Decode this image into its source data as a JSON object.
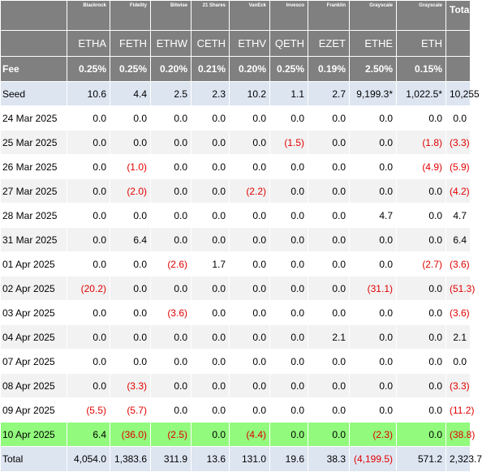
{
  "colors": {
    "header_bg": "#808080",
    "seed_bg": "#dde5f1",
    "alt_bg": "#f2f2f2",
    "highlight_bg": "#92fa7d",
    "negative": "#e00000"
  },
  "header": {
    "issuers": [
      "Blackrock",
      "Fidelity",
      "Bitwise",
      "21 Shares",
      "VanEck",
      "Invesco",
      "Franklin",
      "Grayscale",
      "Grayscale"
    ],
    "total_label": "Total",
    "tickers": [
      "ETHA",
      "FETH",
      "ETHW",
      "CETH",
      "ETHV",
      "QETH",
      "EZET",
      "ETHE",
      "ETH"
    ],
    "fee_label": "Fee",
    "fees": [
      "0.25%",
      "0.25%",
      "0.20%",
      "0.21%",
      "0.20%",
      "0.25%",
      "0.19%",
      "2.50%",
      "0.15%"
    ]
  },
  "rows": [
    {
      "label": "Seed",
      "values": [
        "10.6",
        "4.4",
        "2.5",
        "2.3",
        "10.2",
        "1.1",
        "2.7",
        "9,199.3*",
        "1,022.5*"
      ],
      "total": "10,255"
    },
    {
      "label": "24 Mar 2025",
      "values": [
        "0.0",
        "0.0",
        "0.0",
        "0.0",
        "0.0",
        "0.0",
        "0.0",
        "0.0",
        "0.0"
      ],
      "total": "0.0"
    },
    {
      "label": "25 Mar 2025",
      "values": [
        "0.0",
        "0.0",
        "0.0",
        "0.0",
        "0.0",
        "(1.5)",
        "0.0",
        "0.0",
        "(1.8)"
      ],
      "total": "(3.3)"
    },
    {
      "label": "26 Mar 2025",
      "values": [
        "0.0",
        "(1.0)",
        "0.0",
        "0.0",
        "0.0",
        "0.0",
        "0.0",
        "0.0",
        "(4.9)"
      ],
      "total": "(5.9)"
    },
    {
      "label": "27 Mar 2025",
      "values": [
        "0.0",
        "(2.0)",
        "0.0",
        "0.0",
        "(2.2)",
        "0.0",
        "0.0",
        "0.0",
        "0.0"
      ],
      "total": "(4.2)"
    },
    {
      "label": "28 Mar 2025",
      "values": [
        "0.0",
        "0.0",
        "0.0",
        "0.0",
        "0.0",
        "0.0",
        "0.0",
        "4.7",
        "0.0"
      ],
      "total": "4.7"
    },
    {
      "label": "31 Mar 2025",
      "values": [
        "0.0",
        "6.4",
        "0.0",
        "0.0",
        "0.0",
        "0.0",
        "0.0",
        "0.0",
        "0.0"
      ],
      "total": "6.4"
    },
    {
      "label": "01 Apr 2025",
      "values": [
        "0.0",
        "0.0",
        "(2.6)",
        "1.7",
        "0.0",
        "0.0",
        "0.0",
        "0.0",
        "(2.7)"
      ],
      "total": "(3.6)"
    },
    {
      "label": "02 Apr 2025",
      "values": [
        "(20.2)",
        "0.0",
        "0.0",
        "0.0",
        "0.0",
        "0.0",
        "0.0",
        "(31.1)",
        "0.0"
      ],
      "total": "(51.3)"
    },
    {
      "label": "03 Apr 2025",
      "values": [
        "0.0",
        "0.0",
        "(3.6)",
        "0.0",
        "0.0",
        "0.0",
        "0.0",
        "0.0",
        "0.0"
      ],
      "total": "(3.6)"
    },
    {
      "label": "04 Apr 2025",
      "values": [
        "0.0",
        "0.0",
        "0.0",
        "0.0",
        "0.0",
        "0.0",
        "2.1",
        "0.0",
        "0.0"
      ],
      "total": "2.1"
    },
    {
      "label": "07 Apr 2025",
      "values": [
        "0.0",
        "0.0",
        "0.0",
        "0.0",
        "0.0",
        "0.0",
        "0.0",
        "0.0",
        "0.0"
      ],
      "total": "0.0"
    },
    {
      "label": "08 Apr 2025",
      "values": [
        "0.0",
        "(3.3)",
        "0.0",
        "0.0",
        "0.0",
        "0.0",
        "0.0",
        "0.0",
        "0.0"
      ],
      "total": "(3.3)"
    },
    {
      "label": "09 Apr 2025",
      "values": [
        "(5.5)",
        "(5.7)",
        "0.0",
        "0.0",
        "0.0",
        "0.0",
        "0.0",
        "0.0",
        "0.0"
      ],
      "total": "(11.2)"
    },
    {
      "label": "10 Apr 2025",
      "values": [
        "6.4",
        "(36.0)",
        "(2.5)",
        "0.0",
        "(4.4)",
        "0.0",
        "0.0",
        "(2.3)",
        "0.0"
      ],
      "total": "(38.8)"
    }
  ],
  "totals": {
    "label": "Total",
    "values": [
      "4,054.0",
      "1,383.6",
      "311.9",
      "13.6",
      "131.0",
      "19.6",
      "38.3",
      "(4,199.5)",
      "571.2"
    ],
    "total": "2,323.7"
  }
}
